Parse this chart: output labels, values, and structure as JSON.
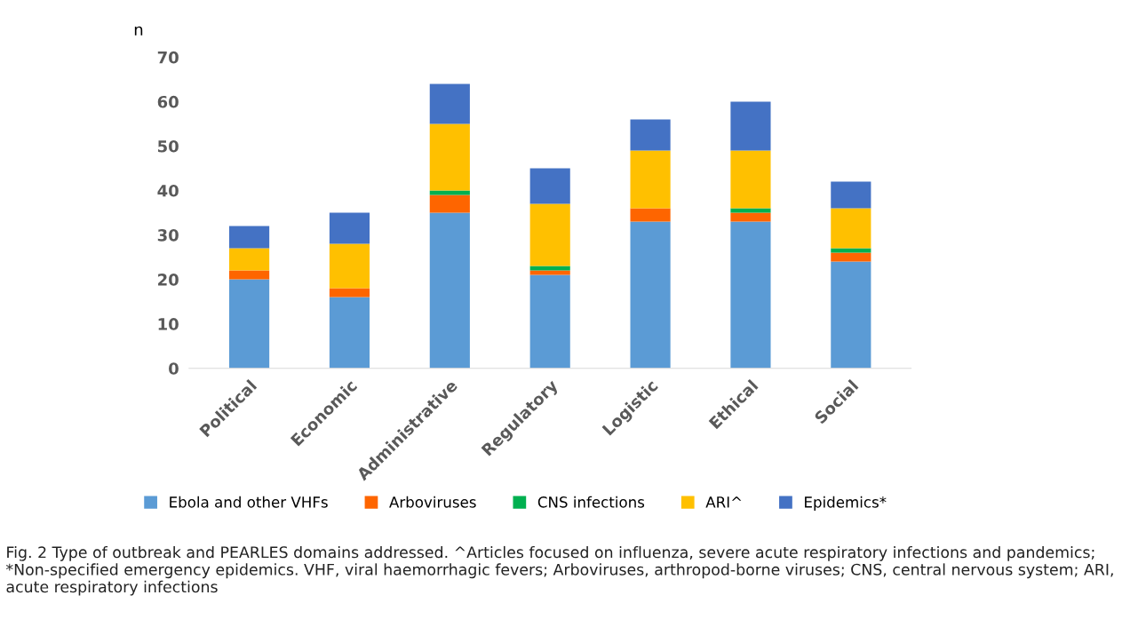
{
  "chart_data": {
    "type": "bar",
    "stacked": true,
    "ylabel": "n",
    "categories": [
      "Political",
      "Economic",
      "Administrative",
      "Regulatory",
      "Logistic",
      "Ethical",
      "Social"
    ],
    "series": [
      {
        "name": "Ebola and other VHFs",
        "color": "#5b9bd5",
        "values": [
          20,
          16,
          35,
          21,
          33,
          33,
          24
        ]
      },
      {
        "name": "Arboviruses",
        "color": "#fe6500",
        "values": [
          2,
          2,
          4,
          1,
          3,
          2,
          2
        ]
      },
      {
        "name": "CNS infections",
        "color": "#00b050",
        "values": [
          0,
          0,
          1,
          1,
          0,
          1,
          1
        ]
      },
      {
        "name": "ARI^",
        "color": "#ffc000",
        "values": [
          5,
          10,
          15,
          14,
          13,
          13,
          9
        ]
      },
      {
        "name": "Epidemics*",
        "color": "#4472c4",
        "values": [
          5,
          7,
          9,
          8,
          7,
          11,
          6
        ]
      }
    ],
    "ylim": [
      0,
      70
    ],
    "yticks": [
      0,
      10,
      20,
      30,
      40,
      50,
      60,
      70
    ],
    "grid": false,
    "legend": "bottom",
    "annotations": [
      "Fig. 2 Type of outbreak and PEARLES domains addressed. ^Articles focused on influenza, severe acute respiratory infections and pandemics; *Non-specified emergency epidemics. VHF, viral haemorrhagic fevers; Arboviruses, arthropod-borne viruses; CNS, central nervous system; ARI, acute respiratory infections"
    ]
  }
}
